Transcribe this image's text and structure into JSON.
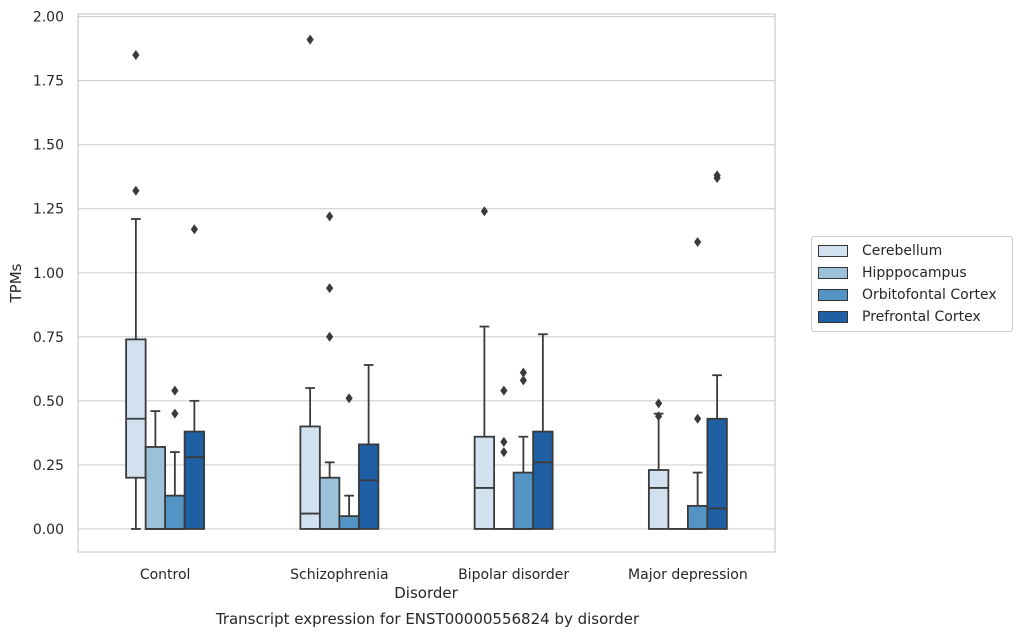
{
  "caption": "Transcript expression for ENST00000556824 by disorder",
  "chart_data": {
    "type": "box",
    "xlabel": "Disorder",
    "ylabel": "TPMs",
    "ylim": [
      -0.09,
      2.01
    ],
    "yticks": [
      "0.00",
      "0.25",
      "0.50",
      "0.75",
      "1.00",
      "1.25",
      "1.50",
      "1.75",
      "2.00"
    ],
    "ytick_values": [
      0,
      0.25,
      0.5,
      0.75,
      1.0,
      1.25,
      1.5,
      1.75,
      2.0
    ],
    "grid": true,
    "legend_position": "right",
    "categories": [
      "Control",
      "Schizophrenia",
      "Bipolar disorder",
      "Major depression"
    ],
    "series": [
      {
        "name": "Cerebellum",
        "color": "#d1e1f0",
        "boxes": [
          {
            "whislo": 0.0,
            "q1": 0.2,
            "med": 0.43,
            "q3": 0.74,
            "whishi": 1.21,
            "fliers": [
              1.85,
              1.32
            ]
          },
          {
            "whislo": 0.0,
            "q1": 0.0,
            "med": 0.06,
            "q3": 0.4,
            "whishi": 0.55,
            "fliers": [
              1.91
            ]
          },
          {
            "whislo": 0.0,
            "q1": 0.0,
            "med": 0.16,
            "q3": 0.36,
            "whishi": 0.79,
            "fliers": [
              1.24
            ]
          },
          {
            "whislo": 0.0,
            "q1": 0.0,
            "med": 0.16,
            "q3": 0.23,
            "whishi": 0.45,
            "fliers": [
              0.49,
              0.44
            ]
          }
        ]
      },
      {
        "name": "Hipppocampus",
        "color": "#9bc1db",
        "boxes": [
          {
            "whislo": 0.0,
            "q1": 0.0,
            "med": 0.0,
            "q3": 0.32,
            "whishi": 0.46,
            "fliers": []
          },
          {
            "whislo": 0.0,
            "q1": 0.0,
            "med": 0.0,
            "q3": 0.2,
            "whishi": 0.26,
            "fliers": [
              1.22,
              0.94,
              0.75
            ]
          },
          {
            "whislo": 0.0,
            "q1": 0.0,
            "med": 0.0,
            "q3": 0.0,
            "whishi": 0.0,
            "fliers": [
              0.54,
              0.34,
              0.3
            ]
          },
          {
            "whislo": 0.0,
            "q1": 0.0,
            "med": 0.0,
            "q3": 0.0,
            "whishi": 0.0,
            "fliers": []
          }
        ]
      },
      {
        "name": "Orbitofontal Cortex",
        "color": "#5394c4",
        "boxes": [
          {
            "whislo": 0.0,
            "q1": 0.0,
            "med": 0.0,
            "q3": 0.13,
            "whishi": 0.3,
            "fliers": [
              0.54,
              0.45
            ]
          },
          {
            "whislo": 0.0,
            "q1": 0.0,
            "med": 0.0,
            "q3": 0.05,
            "whishi": 0.13,
            "fliers": [
              0.51
            ]
          },
          {
            "whislo": 0.0,
            "q1": 0.0,
            "med": 0.0,
            "q3": 0.22,
            "whishi": 0.36,
            "fliers": [
              0.61,
              0.58
            ]
          },
          {
            "whislo": 0.0,
            "q1": 0.0,
            "med": 0.0,
            "q3": 0.09,
            "whishi": 0.22,
            "fliers": [
              1.12,
              0.43
            ]
          }
        ]
      },
      {
        "name": "Prefrontal Cortex",
        "color": "#1f5fa4",
        "boxes": [
          {
            "whislo": 0.0,
            "q1": 0.0,
            "med": 0.28,
            "q3": 0.38,
            "whishi": 0.5,
            "fliers": [
              1.17
            ]
          },
          {
            "whislo": 0.0,
            "q1": 0.0,
            "med": 0.19,
            "q3": 0.33,
            "whishi": 0.64,
            "fliers": []
          },
          {
            "whislo": 0.0,
            "q1": 0.0,
            "med": 0.26,
            "q3": 0.38,
            "whishi": 0.76,
            "fliers": []
          },
          {
            "whislo": 0.0,
            "q1": 0.0,
            "med": 0.08,
            "q3": 0.43,
            "whishi": 0.6,
            "fliers": [
              1.38,
              1.37
            ]
          }
        ]
      }
    ]
  }
}
